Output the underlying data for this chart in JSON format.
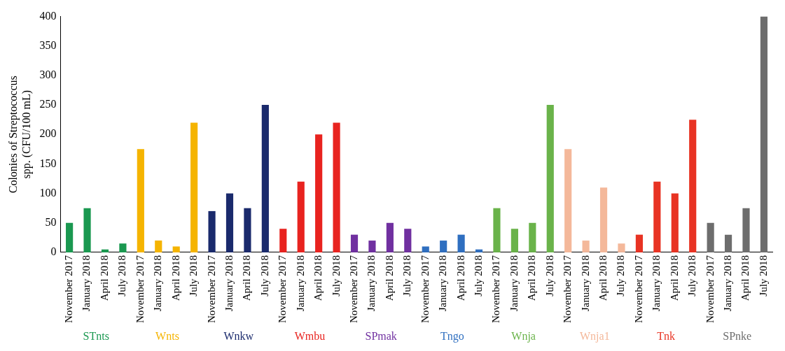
{
  "chart_data": {
    "type": "bar",
    "ylabel": "Colonies of Streptococcus spp. (CFU/100 mL)",
    "categories": [
      "November 2017",
      "January 2018",
      "April 2018",
      "July 2018",
      "November 2017",
      "January 2018",
      "April 2018",
      "July 2018",
      "November 2017",
      "January 2018",
      "April 2018",
      "July 2018",
      "November 2017",
      "January 2018",
      "April 2018",
      "July 2018",
      "November 2017",
      "January 2018",
      "April 2018",
      "July 2018",
      "November 2017",
      "January 2018",
      "April 2018",
      "July 2018",
      "November 2017",
      "January 2018",
      "April 2018",
      "July 2018",
      "November 2017",
      "January 2018",
      "April 2018",
      "July 2018",
      "November 2017",
      "January 2018",
      "April 2018",
      "July 2018",
      "November 2017",
      "January 2018",
      "April 2018",
      "July 2018"
    ],
    "series": [
      {
        "name": "STnts",
        "color": "#1a9850",
        "values": [
          50,
          75,
          5,
          15,
          null,
          null,
          null,
          null,
          null,
          null,
          null,
          null,
          null,
          null,
          null,
          null,
          null,
          null,
          null,
          null,
          null,
          null,
          null,
          null,
          null,
          null,
          null,
          null,
          null,
          null,
          null,
          null,
          null,
          null,
          null,
          null,
          null,
          null,
          null,
          null
        ]
      },
      {
        "name": "Wnts",
        "color": "#f5b400",
        "values": [
          null,
          null,
          null,
          null,
          175,
          20,
          10,
          220,
          null,
          null,
          null,
          null,
          null,
          null,
          null,
          null,
          null,
          null,
          null,
          null,
          null,
          null,
          null,
          null,
          null,
          null,
          null,
          null,
          null,
          null,
          null,
          null,
          null,
          null,
          null,
          null,
          null,
          null,
          null,
          null
        ]
      },
      {
        "name": "Wnkw",
        "color": "#1a2a6c",
        "values": [
          null,
          null,
          null,
          null,
          null,
          null,
          null,
          null,
          70,
          100,
          75,
          250,
          null,
          null,
          null,
          null,
          null,
          null,
          null,
          null,
          null,
          null,
          null,
          null,
          null,
          null,
          null,
          null,
          null,
          null,
          null,
          null,
          null,
          null,
          null,
          null,
          null,
          null,
          null,
          null
        ]
      },
      {
        "name": "Wmbu",
        "color": "#e8231f",
        "values": [
          null,
          null,
          null,
          null,
          null,
          null,
          null,
          null,
          null,
          null,
          null,
          null,
          40,
          120,
          200,
          220,
          null,
          null,
          null,
          null,
          null,
          null,
          null,
          null,
          null,
          null,
          null,
          null,
          null,
          null,
          null,
          null,
          null,
          null,
          null,
          null,
          null,
          null,
          null,
          null
        ]
      },
      {
        "name": "SPmak",
        "color": "#7030a0",
        "values": [
          null,
          null,
          null,
          null,
          null,
          null,
          null,
          null,
          null,
          null,
          null,
          null,
          null,
          null,
          null,
          null,
          30,
          20,
          50,
          40,
          null,
          null,
          null,
          null,
          null,
          null,
          null,
          null,
          null,
          null,
          null,
          null,
          null,
          null,
          null,
          null,
          null,
          null,
          null,
          null
        ]
      },
      {
        "name": "Tngo",
        "color": "#2f6fc0",
        "values": [
          null,
          null,
          null,
          null,
          null,
          null,
          null,
          null,
          null,
          null,
          null,
          null,
          null,
          null,
          null,
          null,
          null,
          null,
          null,
          null,
          10,
          20,
          30,
          5,
          null,
          null,
          null,
          null,
          null,
          null,
          null,
          null,
          null,
          null,
          null,
          null,
          null,
          null,
          null,
          null
        ]
      },
      {
        "name": "Wnja",
        "color": "#6ab34a",
        "values": [
          null,
          null,
          null,
          null,
          null,
          null,
          null,
          null,
          null,
          null,
          null,
          null,
          null,
          null,
          null,
          null,
          null,
          null,
          null,
          null,
          null,
          null,
          null,
          null,
          75,
          40,
          50,
          250,
          null,
          null,
          null,
          null,
          null,
          null,
          null,
          null,
          null,
          null,
          null,
          null
        ]
      },
      {
        "name": "Wnja1",
        "color": "#f4b89a",
        "values": [
          null,
          null,
          null,
          null,
          null,
          null,
          null,
          null,
          null,
          null,
          null,
          null,
          null,
          null,
          null,
          null,
          null,
          null,
          null,
          null,
          null,
          null,
          null,
          null,
          null,
          null,
          null,
          null,
          175,
          20,
          110,
          15,
          null,
          null,
          null,
          null,
          null,
          null,
          null,
          null
        ]
      },
      {
        "name": "Tnk",
        "color": "#e83323",
        "values": [
          null,
          null,
          null,
          null,
          null,
          null,
          null,
          null,
          null,
          null,
          null,
          null,
          null,
          null,
          null,
          null,
          null,
          null,
          null,
          null,
          null,
          null,
          null,
          null,
          null,
          null,
          null,
          null,
          null,
          null,
          null,
          null,
          30,
          120,
          100,
          225,
          null,
          null,
          null,
          null
        ]
      },
      {
        "name": "SPnke",
        "color": "#6d6d6d",
        "values": [
          null,
          null,
          null,
          null,
          null,
          null,
          null,
          null,
          null,
          null,
          null,
          null,
          null,
          null,
          null,
          null,
          null,
          null,
          null,
          null,
          null,
          null,
          null,
          null,
          null,
          null,
          null,
          null,
          null,
          null,
          null,
          null,
          null,
          null,
          null,
          null,
          50,
          30,
          75,
          400
        ]
      }
    ],
    "ylim": [
      0,
      400
    ],
    "yticks": [
      0,
      50,
      100,
      150,
      200,
      250,
      300,
      350,
      400
    ],
    "grid": false,
    "legend": false
  }
}
